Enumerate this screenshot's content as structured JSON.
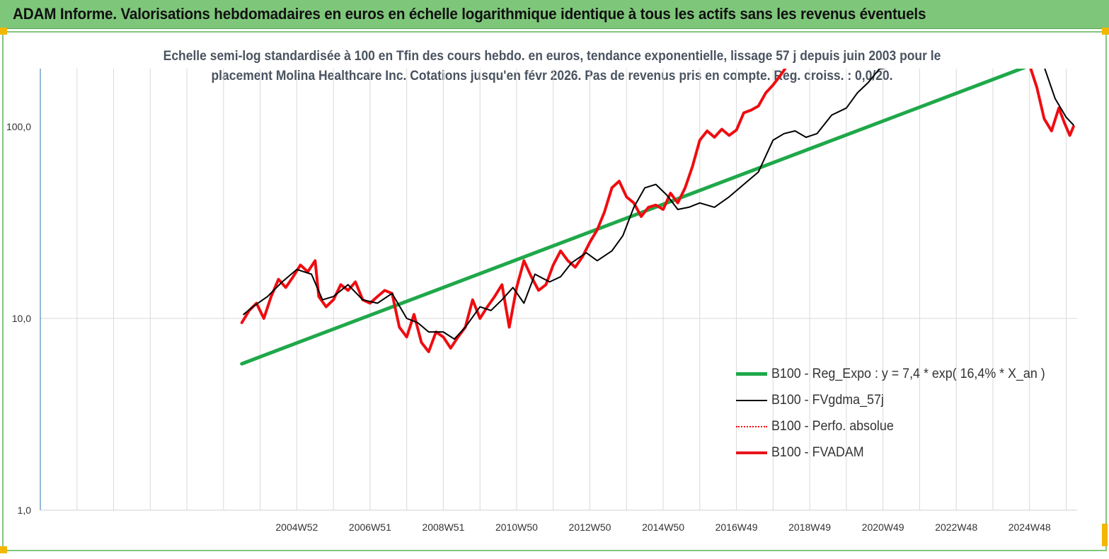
{
  "header": {
    "title": "ADAM Informe. Valorisations hebdomadaires en euros en échelle logarithmique identique à tous les actifs sans les revenus éventuels"
  },
  "chart": {
    "subtitle_line1": "Echelle semi-log standardisée à 100 en Tfin des cours hebdo. en euros, tendance exponentielle, lissage 57 j depuis juin 2003 pour le",
    "subtitle_line2": "placement Molina Healthcare Inc.  Cotations jusqu'en févr 2026.  Pas de revenus pris en compte. Reg. croiss. : 0,0/20."
  },
  "legend": [
    {
      "label": "B100 - Reg_Expo : y = 7,4 * exp( 16,4% *  X_an )",
      "color": "#1fa84a"
    },
    {
      "label": "B100 - FVgdma_57j",
      "color": "#000000"
    },
    {
      "label": "B100 - Perfo. absolue",
      "color": "#ff0000"
    },
    {
      "label": "B100 - FVADAM",
      "color": "#e8141b"
    }
  ],
  "chart_data": {
    "type": "line",
    "title": "Echelle semi-log standardisée à 100 en Tfin des cours hebdo. en euros, tendance exponentielle, lissage 57 j depuis juin 2003 pour le placement Molina Healthcare Inc.  Cotations jusqu'en févr 2026.  Pas de revenus pris en compte. Reg. croiss. : 0,0/20.",
    "xlabel": "",
    "ylabel": "",
    "y_scale": "log",
    "ylim": [
      1,
      200
    ],
    "xlim": [
      1998.0,
      2026.3
    ],
    "y_ticks": [
      1,
      10,
      100
    ],
    "y_tick_labels": [
      "1,0",
      "10,0",
      "100,0"
    ],
    "x_ticks": [
      2005.0,
      2007.0,
      2009.0,
      2011.0,
      2013.0,
      2015.0,
      2017.0,
      2019.0,
      2021.0,
      2023.0,
      2025.0
    ],
    "x_tick_labels": [
      "2004W52",
      "2006W51",
      "2008W51",
      "2010W50",
      "2012W50",
      "2014W50",
      "2016W49",
      "2018W49",
      "2020W49",
      "2022W48",
      "2024W48"
    ],
    "grid": {
      "vertical": true,
      "horizontal_at": [
        10
      ]
    },
    "legend_position": "bottom-right",
    "series": [
      {
        "name": "B100 - Reg_Expo : y = 7,4 * exp( 16,4% *  X_an )",
        "style": "trend",
        "color": "#1fa84a",
        "x": [
          2003.5,
          2025.05
        ],
        "y": [
          5.8,
          210
        ]
      },
      {
        "name": "B100 - FVgdma_57j",
        "style": "smooth",
        "color": "#000000",
        "x": [
          2003.55,
          2003.8,
          2004.2,
          2004.6,
          2005.0,
          2005.4,
          2005.7,
          2006.0,
          2006.4,
          2006.8,
          2007.2,
          2007.6,
          2008.0,
          2008.3,
          2008.6,
          2009.0,
          2009.3,
          2009.6,
          2010.0,
          2010.3,
          2010.6,
          2010.9,
          2011.2,
          2011.5,
          2011.9,
          2012.2,
          2012.5,
          2012.9,
          2013.2,
          2013.6,
          2013.9,
          2014.2,
          2014.5,
          2014.8,
          2015.1,
          2015.4,
          2015.7,
          2016.0,
          2016.4,
          2016.8,
          2017.2,
          2017.6,
          2018.0,
          2018.3,
          2018.6,
          2018.9,
          2019.2,
          2019.6,
          2020.0,
          2020.3,
          2020.6,
          2020.9,
          2021.3,
          2021.7,
          2022.0,
          2022.4,
          2022.8,
          2023.2,
          2023.6,
          2024.0,
          2024.4,
          2024.8,
          2025.1,
          2025.4,
          2025.7,
          2026.0,
          2026.2
        ],
        "y": [
          10.5,
          11.5,
          13.0,
          15.5,
          18.0,
          17.0,
          12.5,
          13.0,
          15.0,
          12.5,
          12.0,
          13.5,
          10.0,
          9.5,
          8.5,
          8.5,
          7.8,
          9.0,
          11.5,
          11.0,
          12.5,
          14.5,
          12.0,
          17.0,
          15.5,
          16.5,
          19.5,
          22.0,
          20.0,
          22.5,
          27.0,
          38.0,
          48.0,
          50.0,
          44.0,
          37.0,
          38.0,
          40.0,
          38.0,
          43.0,
          50.0,
          58.0,
          85.0,
          92.0,
          95.0,
          88.0,
          92.0,
          115.0,
          125.0,
          150.0,
          170.0,
          200.0,
          205.0,
          205.0,
          205.0,
          205.0,
          205.0,
          205.0,
          205.0,
          205.0,
          205.0,
          205.0,
          205.0,
          205.0,
          140.0,
          112.0,
          102.0
        ]
      },
      {
        "name": "B100 - Perfo. absolue",
        "style": "dotted",
        "color": "#ff0000",
        "x": [
          2003.5,
          2003.7,
          2003.9,
          2004.1,
          2004.3,
          2004.5,
          2004.7,
          2004.9,
          2005.1,
          2005.3,
          2005.5,
          2005.6,
          2005.8,
          2006.0,
          2006.2,
          2006.4,
          2006.6,
          2006.8,
          2007.0,
          2007.2,
          2007.4,
          2007.6,
          2007.8,
          2008.0,
          2008.2,
          2008.4,
          2008.6,
          2008.8,
          2009.0,
          2009.2,
          2009.4,
          2009.6,
          2009.8,
          2010.0,
          2010.2,
          2010.4,
          2010.6,
          2010.8,
          2011.0,
          2011.2,
          2011.4,
          2011.6,
          2011.8,
          2012.0,
          2012.2,
          2012.4,
          2012.6,
          2012.8,
          2013.0,
          2013.2,
          2013.4,
          2013.6,
          2013.8,
          2014.0,
          2014.2,
          2014.4,
          2014.6,
          2014.8,
          2015.0,
          2015.2,
          2015.4,
          2015.6,
          2015.8,
          2016.0,
          2016.2,
          2016.4,
          2016.6,
          2016.8,
          2017.0,
          2017.2,
          2017.4,
          2017.6,
          2017.8,
          2018.0,
          2018.2,
          2018.4,
          2018.6,
          2018.8,
          2019.0,
          2019.2,
          2019.4,
          2019.6,
          2019.8,
          2020.0,
          2020.2,
          2020.4,
          2020.6,
          2020.8,
          2021.0,
          2021.3,
          2021.6,
          2022.0,
          2022.4,
          2022.8,
          2023.2,
          2023.6,
          2024.0,
          2024.4,
          2024.8,
          2025.0,
          2025.2,
          2025.4,
          2025.6,
          2025.8,
          2025.95,
          2026.1,
          2026.2
        ],
        "y": [
          9.5,
          11.0,
          12.0,
          10.0,
          13.0,
          16.0,
          14.5,
          16.5,
          19.0,
          17.5,
          20.0,
          13.0,
          11.5,
          12.5,
          15.0,
          14.0,
          15.5,
          12.5,
          12.0,
          13.0,
          14.0,
          13.5,
          9.0,
          8.0,
          10.5,
          7.5,
          6.7,
          8.5,
          8.0,
          7.0,
          8.0,
          9.0,
          12.5,
          10.0,
          11.5,
          13.0,
          15.0,
          9.0,
          14.5,
          20.0,
          16.5,
          14.0,
          15.0,
          19.0,
          22.5,
          20.0,
          18.5,
          21.0,
          25.0,
          29.0,
          36.0,
          48.0,
          52.0,
          43.0,
          40.0,
          34.0,
          38.0,
          39.0,
          37.0,
          45.0,
          40.0,
          48.0,
          62.0,
          85.0,
          95.0,
          88.0,
          97.0,
          90.0,
          96.0,
          118.0,
          122.0,
          128.0,
          150.0,
          165.0,
          185.0,
          210.0,
          210.0,
          210.0,
          210.0,
          210.0,
          210.0,
          210.0,
          210.0,
          210.0,
          210.0,
          210.0,
          210.0,
          210.0,
          210.0,
          210.0,
          210.0,
          210.0,
          210.0,
          210.0,
          210.0,
          210.0,
          210.0,
          210.0,
          210.0,
          210.0,
          160.0,
          110.0,
          95.0,
          125.0,
          105.0,
          90.0,
          100.0
        ]
      },
      {
        "name": "B100 - FVADAM",
        "style": "solid",
        "color": "#e8141b",
        "x": [
          2003.5,
          2003.7,
          2003.9,
          2004.1,
          2004.3,
          2004.5,
          2004.7,
          2004.9,
          2005.1,
          2005.3,
          2005.5,
          2005.6,
          2005.8,
          2006.0,
          2006.2,
          2006.4,
          2006.6,
          2006.8,
          2007.0,
          2007.2,
          2007.4,
          2007.6,
          2007.8,
          2008.0,
          2008.2,
          2008.4,
          2008.6,
          2008.8,
          2009.0,
          2009.2,
          2009.4,
          2009.6,
          2009.8,
          2010.0,
          2010.2,
          2010.4,
          2010.6,
          2010.8,
          2011.0,
          2011.2,
          2011.4,
          2011.6,
          2011.8,
          2012.0,
          2012.2,
          2012.4,
          2012.6,
          2012.8,
          2013.0,
          2013.2,
          2013.4,
          2013.6,
          2013.8,
          2014.0,
          2014.2,
          2014.4,
          2014.6,
          2014.8,
          2015.0,
          2015.2,
          2015.4,
          2015.6,
          2015.8,
          2016.0,
          2016.2,
          2016.4,
          2016.6,
          2016.8,
          2017.0,
          2017.2,
          2017.4,
          2017.6,
          2017.8,
          2018.0,
          2018.2,
          2018.4,
          2018.6,
          2018.8,
          2019.0,
          2019.2,
          2019.4,
          2019.6,
          2019.8,
          2020.0,
          2020.2,
          2020.4,
          2020.6,
          2020.8,
          2021.0,
          2021.3,
          2021.6,
          2022.0,
          2022.4,
          2022.8,
          2023.2,
          2023.6,
          2024.0,
          2024.4,
          2024.8,
          2025.0,
          2025.2,
          2025.4,
          2025.6,
          2025.8,
          2025.95,
          2026.1,
          2026.2
        ],
        "y": [
          9.5,
          11.0,
          12.0,
          10.0,
          13.0,
          16.0,
          14.5,
          16.5,
          19.0,
          17.5,
          20.0,
          13.0,
          11.5,
          12.5,
          15.0,
          14.0,
          15.5,
          12.5,
          12.0,
          13.0,
          14.0,
          13.5,
          9.0,
          8.0,
          10.5,
          7.5,
          6.7,
          8.5,
          8.0,
          7.0,
          8.0,
          9.0,
          12.5,
          10.0,
          11.5,
          13.0,
          15.0,
          9.0,
          14.5,
          20.0,
          16.5,
          14.0,
          15.0,
          19.0,
          22.5,
          20.0,
          18.5,
          21.0,
          25.0,
          29.0,
          36.0,
          48.0,
          52.0,
          43.0,
          40.0,
          34.0,
          38.0,
          39.0,
          37.0,
          45.0,
          40.0,
          48.0,
          62.0,
          85.0,
          95.0,
          88.0,
          97.0,
          90.0,
          96.0,
          118.0,
          122.0,
          128.0,
          150.0,
          165.0,
          185.0,
          210.0,
          210.0,
          210.0,
          210.0,
          210.0,
          210.0,
          210.0,
          210.0,
          210.0,
          210.0,
          210.0,
          210.0,
          210.0,
          210.0,
          210.0,
          210.0,
          210.0,
          210.0,
          210.0,
          210.0,
          210.0,
          210.0,
          210.0,
          210.0,
          210.0,
          160.0,
          110.0,
          95.0,
          125.0,
          105.0,
          90.0,
          100.0
        ]
      }
    ]
  }
}
